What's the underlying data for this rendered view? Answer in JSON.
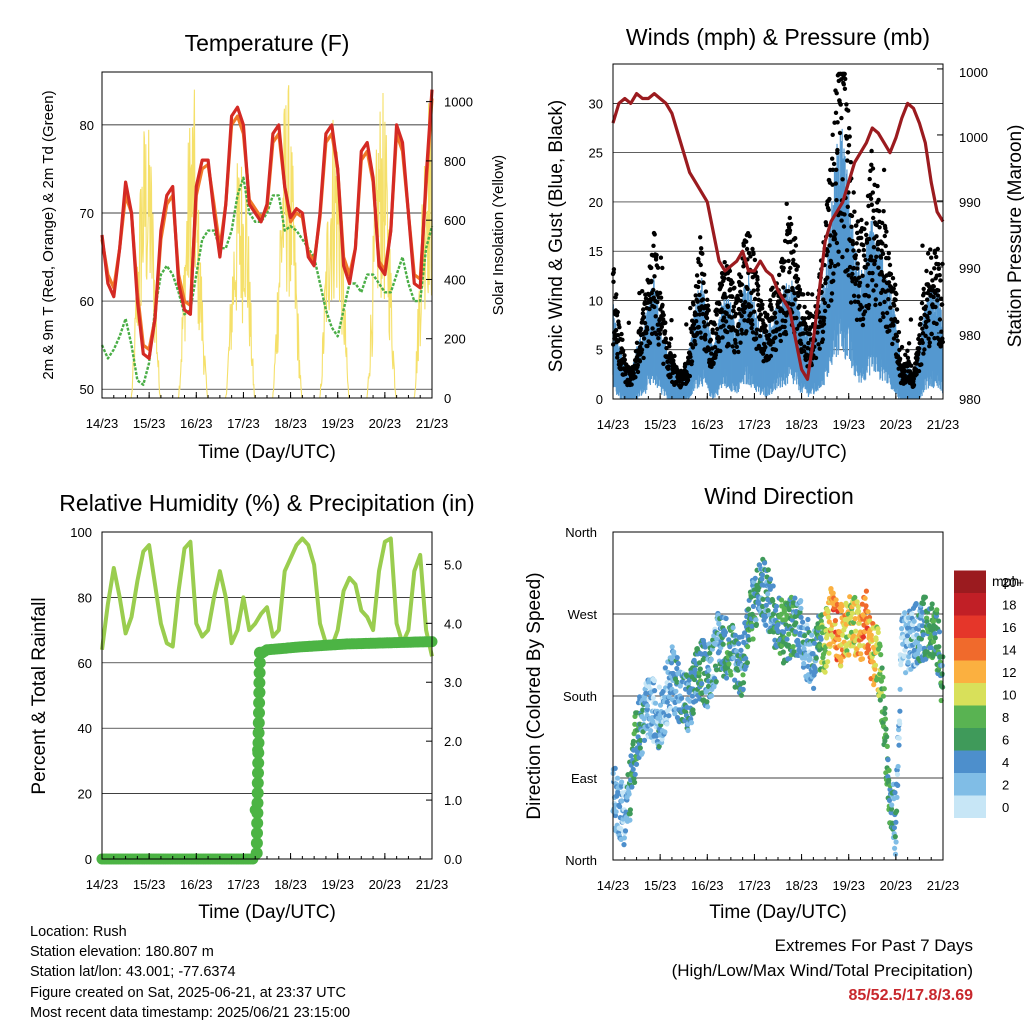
{
  "info": {
    "location": "Location: Rush",
    "elevation": "Station elevation: 180.807 m",
    "latlon": "Station lat/lon: 43.001; -77.6374",
    "created": "Figure created on Sat, 2025-06-21, at 23:37 UTC",
    "latest": "Most recent data timestamp: 2025/06/21 23:15:00"
  },
  "extremes": {
    "title": "Extremes For Past 7 Days",
    "subtitle": "(High/Low/Max Wind/Total Precipitation)",
    "values": "85/52.5/17.8/3.69"
  },
  "colors": {
    "temp2m": "#d42a24",
    "temp9m": "#f07828",
    "dewpoint": "#4aae46",
    "solar": "#f5e06a",
    "gust": "#000000",
    "wind": "#5599d0",
    "pressure": "#9b1b1f",
    "rh": "#9acd4f",
    "rain": "#4cb444"
  },
  "chart_data": [
    {
      "type": "line",
      "title": "Temperature (F)",
      "xlabel": "Time (Day/UTC)",
      "ylabel": "2m & 9m T (Red, Orange) & 2m Td (Green)",
      "y2label": "Solar Insolation (Yellow)",
      "x_ticks": [
        "14/23",
        "15/23",
        "16/23",
        "17/23",
        "18/23",
        "19/23",
        "20/23",
        "21/23"
      ],
      "ylim": [
        49,
        86
      ],
      "y_ticks": [
        50,
        60,
        70,
        80
      ],
      "y2lim": [
        0,
        1100
      ],
      "y2_ticks": [
        0,
        200,
        400,
        600,
        800,
        1000
      ],
      "x_days": [
        0,
        0.125,
        0.25,
        0.375,
        0.5,
        0.625,
        0.75,
        0.875,
        1,
        1.125,
        1.25,
        1.375,
        1.5,
        1.625,
        1.75,
        1.875,
        2,
        2.125,
        2.25,
        2.375,
        2.5,
        2.625,
        2.75,
        2.875,
        3,
        3.125,
        3.25,
        3.375,
        3.5,
        3.625,
        3.75,
        3.875,
        4,
        4.125,
        4.25,
        4.375,
        4.5,
        4.625,
        4.75,
        4.875,
        5,
        5.125,
        5.25,
        5.375,
        5.5,
        5.625,
        5.75,
        5.875,
        6,
        6.125,
        6.25,
        6.375,
        6.5,
        6.625,
        6.75,
        6.875,
        7
      ],
      "series": [
        {
          "name": "2m T",
          "values": [
            67.5,
            62,
            60.5,
            66,
            73.5,
            70,
            60,
            54,
            53.5,
            58,
            68,
            72,
            73,
            62,
            59,
            58.5,
            73,
            76,
            76,
            70,
            65,
            71,
            81,
            82,
            80,
            71,
            70,
            69,
            71,
            79,
            80,
            73,
            69.5,
            70.5,
            70,
            65,
            64,
            70,
            79,
            80,
            75,
            64,
            62,
            66,
            77,
            78,
            74,
            64,
            63,
            68,
            80,
            78,
            70,
            62,
            61.5,
            74,
            84
          ]
        },
        {
          "name": "9m T",
          "values": [
            67,
            63,
            61.5,
            66,
            72,
            70,
            61,
            55,
            54.5,
            58,
            67,
            71,
            72,
            63,
            60,
            59.5,
            72,
            75,
            75.5,
            71,
            66,
            71,
            80,
            81,
            79,
            71.5,
            70.5,
            69.5,
            70.5,
            78,
            79,
            73,
            69,
            70,
            69.5,
            65.5,
            64.5,
            69.5,
            78,
            79,
            75,
            65,
            63,
            66,
            76,
            77,
            73.5,
            64.5,
            63.5,
            68,
            79,
            77,
            70,
            63,
            62.5,
            73,
            83
          ]
        },
        {
          "name": "2m Td",
          "values": [
            55,
            53.5,
            54.5,
            56,
            58,
            55,
            51,
            50.5,
            53,
            59,
            63,
            64,
            63,
            61,
            58.5,
            59,
            63,
            67,
            68,
            68,
            66,
            66,
            68,
            72,
            74,
            70,
            69,
            69,
            70,
            72,
            72,
            68,
            68.5,
            68,
            67,
            66,
            65,
            62,
            59,
            57,
            56,
            59,
            62,
            62,
            61,
            63,
            63,
            62,
            61,
            61,
            63,
            65,
            62,
            60,
            60,
            66,
            68.5
          ]
        }
      ]
    },
    {
      "type": "line",
      "title": "Winds (mph) & Pressure (mb)",
      "xlabel": "Time (Day/UTC)",
      "ylabel": "Sonic Wind & Gust (Blue, Black)",
      "y2label": "Station Pressure (Maroon)",
      "x_ticks": [
        "14/23",
        "15/23",
        "16/23",
        "17/23",
        "18/23",
        "19/23",
        "20/23",
        "21/23"
      ],
      "ylim": [
        0,
        34
      ],
      "y_ticks": [
        0,
        5,
        10,
        15,
        20,
        25,
        30
      ],
      "y2_tick_labels": [
        "980",
        "980",
        "990",
        "990",
        "990",
        "1000",
        "1000"
      ],
      "x_days": [
        0,
        0.125,
        0.25,
        0.375,
        0.5,
        0.625,
        0.75,
        0.875,
        1,
        1.125,
        1.25,
        1.375,
        1.5,
        1.625,
        1.75,
        1.875,
        2,
        2.125,
        2.25,
        2.375,
        2.5,
        2.625,
        2.75,
        2.875,
        3,
        3.125,
        3.25,
        3.375,
        3.5,
        3.625,
        3.75,
        3.875,
        4,
        4.125,
        4.25,
        4.375,
        4.5,
        4.625,
        4.75,
        4.875,
        5,
        5.125,
        5.25,
        5.375,
        5.5,
        5.625,
        5.75,
        5.875,
        6,
        6.125,
        6.25,
        6.375,
        6.5,
        6.625,
        6.75,
        6.875,
        7
      ],
      "series": [
        {
          "name": "Gust",
          "values": [
            10,
            6,
            3,
            2,
            4,
            6,
            9,
            12,
            8,
            5,
            3,
            2,
            2,
            4,
            9,
            11,
            7,
            5,
            8,
            10,
            9,
            7,
            11,
            12,
            10,
            7,
            6,
            8,
            9,
            11,
            13,
            12,
            8,
            6,
            6,
            9,
            12,
            17,
            24,
            26,
            20,
            14,
            12,
            15,
            18,
            15,
            13,
            10,
            8,
            2,
            3,
            2,
            5,
            9,
            10,
            11,
            7
          ]
        },
        {
          "name": "Wind",
          "values": [
            6,
            3,
            2,
            1,
            3,
            4,
            6,
            8,
            5,
            3,
            2,
            1,
            1,
            3,
            6,
            8,
            5,
            3,
            5,
            7,
            6,
            4,
            7,
            8,
            6,
            4,
            4,
            5,
            6,
            7,
            8,
            7,
            5,
            4,
            4,
            6,
            8,
            12,
            17,
            18,
            14,
            10,
            8,
            10,
            12,
            10,
            9,
            7,
            5,
            1,
            2,
            1,
            3,
            6,
            7,
            7,
            5
          ]
        },
        {
          "name": "Pressure",
          "values": [
            28,
            30,
            30.5,
            30,
            31,
            30.5,
            30.5,
            31,
            30.5,
            30,
            29,
            27,
            25,
            23,
            22,
            21,
            20,
            17,
            14,
            13,
            13.5,
            14,
            15,
            13,
            13,
            14,
            13,
            12.5,
            11,
            10,
            9,
            6,
            3,
            2,
            6,
            11,
            16,
            18,
            19,
            20,
            22,
            24,
            25,
            26,
            27.5,
            27,
            26,
            25,
            26.5,
            28.5,
            30,
            29.5,
            28,
            26,
            22,
            19,
            18
          ]
        }
      ]
    },
    {
      "type": "line",
      "title": "Relative Humidity (%) & Precipitation (in)",
      "xlabel": "Time (Day/UTC)",
      "ylabel": "Percent & Total Rainfall",
      "x_ticks": [
        "14/23",
        "15/23",
        "16/23",
        "17/23",
        "18/23",
        "19/23",
        "20/23",
        "21/23"
      ],
      "ylim": [
        0,
        100
      ],
      "y_ticks": [
        0,
        20,
        40,
        60,
        80,
        100
      ],
      "y2lim": [
        0,
        5.55
      ],
      "y2_tick_labels": [
        "0.0",
        "1.0",
        "2.0",
        "3.0",
        "4.0",
        "5.0"
      ],
      "x_days": [
        0,
        0.125,
        0.25,
        0.375,
        0.5,
        0.625,
        0.75,
        0.875,
        1,
        1.125,
        1.25,
        1.375,
        1.5,
        1.625,
        1.75,
        1.875,
        2,
        2.125,
        2.25,
        2.375,
        2.5,
        2.625,
        2.75,
        2.875,
        3,
        3.125,
        3.25,
        3.375,
        3.5,
        3.625,
        3.75,
        3.875,
        4,
        4.125,
        4.25,
        4.375,
        4.5,
        4.625,
        4.75,
        4.875,
        5,
        5.125,
        5.25,
        5.375,
        5.5,
        5.625,
        5.75,
        5.875,
        6,
        6.125,
        6.25,
        6.375,
        6.5,
        6.625,
        6.75,
        6.875,
        7
      ],
      "series": [
        {
          "name": "RH",
          "values": [
            64,
            78,
            89,
            80,
            69,
            74,
            85,
            94,
            96,
            84,
            72,
            66,
            65,
            82,
            95,
            97,
            72,
            68,
            70,
            80,
            88,
            80,
            66,
            70,
            80,
            70,
            72,
            75,
            77,
            68,
            70,
            88,
            92,
            96,
            98,
            96,
            90,
            72,
            66,
            65,
            70,
            82,
            86,
            84,
            76,
            74,
            70,
            88,
            97,
            98,
            72,
            66,
            70,
            88,
            93,
            70,
            62
          ]
        }
      ],
      "rain": {
        "x_days": [
          0,
          3.2,
          3.26,
          3.34,
          3.4,
          3.5,
          4.2,
          5.2,
          7
        ],
        "values": [
          0,
          0,
          1.0,
          2.7,
          3.5,
          3.55,
          3.6,
          3.65,
          3.69
        ]
      }
    },
    {
      "type": "scatter",
      "title": "Wind Direction",
      "xlabel": "Time (Day/UTC)",
      "ylabel": "Direction (Colored By Speed)",
      "x_ticks": [
        "14/23",
        "15/23",
        "16/23",
        "17/23",
        "18/23",
        "19/23",
        "20/23",
        "21/23"
      ],
      "y_tick_labels": [
        "North",
        "East",
        "South",
        "West",
        "North"
      ],
      "ylim": [
        0,
        360
      ],
      "colorbar": {
        "title": "mph",
        "labels": [
          "0",
          "2",
          "4",
          "6",
          "8",
          "10",
          "12",
          "14",
          "16",
          "18",
          "20+"
        ],
        "colors": [
          "#c7e6f6",
          "#80bde6",
          "#4d8fcc",
          "#3f9a5a",
          "#59b352",
          "#d8e05a",
          "#fbb040",
          "#f06a2c",
          "#e5362a",
          "#c11f26",
          "#9b1b1f"
        ]
      },
      "direction_center_deg": [
        70,
        60,
        50,
        80,
        140,
        150,
        165,
        165,
        155,
        180,
        200,
        190,
        175,
        170,
        195,
        210,
        200,
        220,
        240,
        235,
        230,
        220,
        210,
        260,
        280,
        300,
        290,
        275,
        260,
        250,
        255,
        260,
        250,
        230,
        220,
        235,
        240,
        265,
        250,
        245,
        260,
        255,
        245,
        265,
        225,
        220,
        160,
        60,
        40,
        240,
        235,
        245,
        250,
        255,
        258,
        240,
        195
      ],
      "speed_center_mph": [
        3,
        2,
        2,
        5,
        6,
        4,
        2,
        2,
        3,
        2,
        3,
        4,
        3,
        4,
        5,
        6,
        4,
        3,
        4,
        5,
        5,
        4,
        5,
        6,
        5,
        4,
        4,
        5,
        6,
        7,
        6,
        5,
        4,
        3,
        4,
        6,
        9,
        12,
        14,
        12,
        10,
        10,
        12,
        14,
        11,
        9,
        7,
        5,
        3,
        1,
        2,
        3,
        4,
        5,
        6,
        6,
        4
      ],
      "x_days": [
        0,
        0.125,
        0.25,
        0.375,
        0.5,
        0.625,
        0.75,
        0.875,
        1,
        1.125,
        1.25,
        1.375,
        1.5,
        1.625,
        1.75,
        1.875,
        2,
        2.125,
        2.25,
        2.375,
        2.5,
        2.625,
        2.75,
        2.875,
        3,
        3.125,
        3.25,
        3.375,
        3.5,
        3.625,
        3.75,
        3.875,
        4,
        4.125,
        4.25,
        4.375,
        4.5,
        4.625,
        4.75,
        4.875,
        5,
        5.125,
        5.25,
        5.375,
        5.5,
        5.625,
        5.75,
        5.875,
        6,
        6.125,
        6.25,
        6.375,
        6.5,
        6.625,
        6.75,
        6.875,
        7
      ]
    }
  ]
}
